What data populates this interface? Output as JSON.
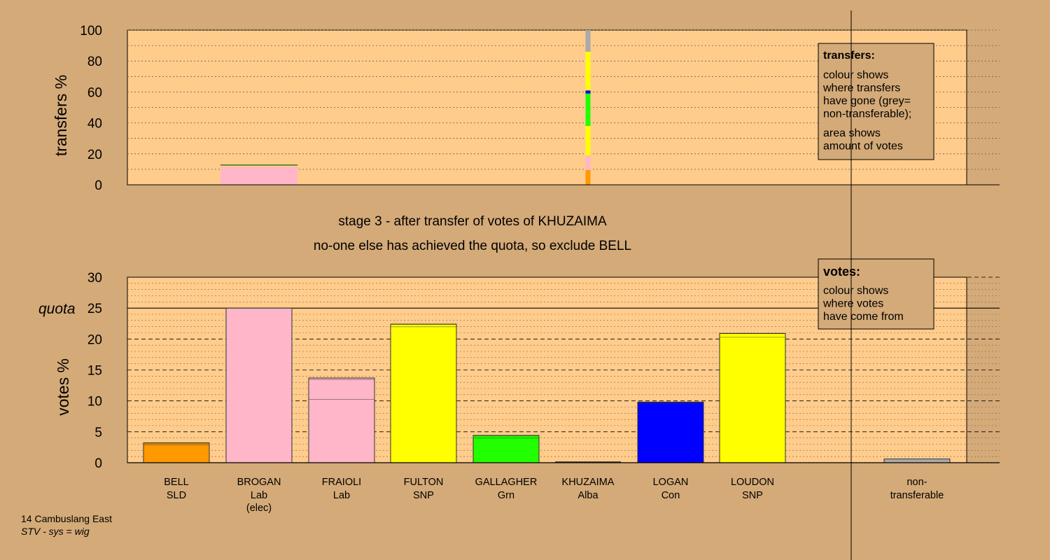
{
  "chart_data": [
    {
      "type": "bar",
      "ylabel": "transfers %",
      "ylim": [
        0,
        100
      ],
      "yticks": [
        0,
        20,
        40,
        60,
        80,
        100
      ],
      "grid": "dotted, every 10",
      "description_stage": "transfers of KHUZAIMA",
      "transfer_columns": [
        {
          "candidate": "BROGAN",
          "segments": [
            {
              "color": "#ffb6c8",
              "value": 12.0
            },
            {
              "color": "#ffff00",
              "value": 0.3
            },
            {
              "color": "#22ff00",
              "value": 0.3
            },
            {
              "color": "#ff9900",
              "value": 0.2
            }
          ]
        },
        {
          "candidate": "KHUZAIMA",
          "segments": [
            {
              "color": "#ff9900",
              "value": 9.5
            },
            {
              "color": "#ffb6c8",
              "value": 9.5
            },
            {
              "color": "#ffff00",
              "value": 19.0
            },
            {
              "color": "#22ff00",
              "value": 21.0
            },
            {
              "color": "#0000ff",
              "value": 2.0
            },
            {
              "color": "#ffff00",
              "value": 25.0
            },
            {
              "color": "#aaaaaa",
              "value": 14.0
            }
          ]
        }
      ],
      "legend": {
        "title": "transfers:",
        "lines1": [
          "colour shows",
          "where transfers",
          "have gone (grey=",
          "non-transferable);"
        ],
        "lines2": [
          "area shows",
          "amount of votes"
        ]
      }
    },
    {
      "type": "bar",
      "ylabel": "votes %",
      "ylim": [
        0,
        30
      ],
      "yticks": [
        0,
        5,
        10,
        15,
        20,
        25,
        30
      ],
      "quota": 25,
      "quota_label": "quota",
      "categories": [
        {
          "name": "BELL",
          "party": "SLD",
          "extra": ""
        },
        {
          "name": "BROGAN",
          "party": "Lab",
          "extra": "(elec)"
        },
        {
          "name": "FRAIOLI",
          "party": "Lab",
          "extra": ""
        },
        {
          "name": "FULTON",
          "party": "SNP",
          "extra": ""
        },
        {
          "name": "GALLAGHER",
          "party": "Grn",
          "extra": ""
        },
        {
          "name": "KHUZAIMA",
          "party": "Alba",
          "extra": ""
        },
        {
          "name": "LOGAN",
          "party": "Con",
          "extra": ""
        },
        {
          "name": "LOUDON",
          "party": "SNP",
          "extra": ""
        }
      ],
      "bars": [
        {
          "candidate": "BELL",
          "segments": [
            {
              "color": "#ff9900",
              "value": 2.9
            },
            {
              "color": "#ff9900",
              "value": 0.3
            }
          ]
        },
        {
          "candidate": "BROGAN",
          "segments": [
            {
              "color": "#ffb6c8",
              "value": 25.0
            }
          ]
        },
        {
          "candidate": "FRAIOLI",
          "segments": [
            {
              "color": "#ffb6c8",
              "value": 10.3
            },
            {
              "color": "#ffb6c8",
              "value": 3.2
            },
            {
              "color": "#ffb6c8",
              "value": 0.2
            }
          ]
        },
        {
          "candidate": "FULTON",
          "segments": [
            {
              "color": "#ffff00",
              "value": 22.0
            },
            {
              "color": "#ffff00",
              "value": 0.4
            }
          ]
        },
        {
          "candidate": "GALLAGHER",
          "segments": [
            {
              "color": "#22ff00",
              "value": 4.0
            },
            {
              "color": "#22ff00",
              "value": 0.4
            }
          ]
        },
        {
          "candidate": "KHUZAIMA",
          "segments": [
            {
              "color": "#e8e8e8",
              "value": 0.0
            }
          ]
        },
        {
          "candidate": "LOGAN",
          "segments": [
            {
              "color": "#0000ff",
              "value": 9.6
            },
            {
              "color": "#0000ff",
              "value": 0.2
            }
          ]
        },
        {
          "candidate": "LOUDON",
          "segments": [
            {
              "color": "#ffff00",
              "value": 20.3
            },
            {
              "color": "#ffff00",
              "value": 0.6
            }
          ]
        }
      ],
      "non_transferable": {
        "label1": "non-",
        "label2": "transferable",
        "value": 0.6,
        "color": "#aaaaaa"
      },
      "legend": {
        "title": "votes:",
        "lines": [
          "colour shows",
          "where votes",
          "have come from"
        ]
      }
    }
  ],
  "stage_title": "stage 3 - after transfer of votes of KHUZAIMA",
  "stage_subtitle": "no-one else has achieved the quota, so exclude BELL",
  "footer": {
    "ward": "14 Cambuslang East",
    "system": "STV - sys = wig"
  },
  "colors": {
    "background": "#d4aa78",
    "panel": "#ffcc8c",
    "axis": "#000000"
  }
}
